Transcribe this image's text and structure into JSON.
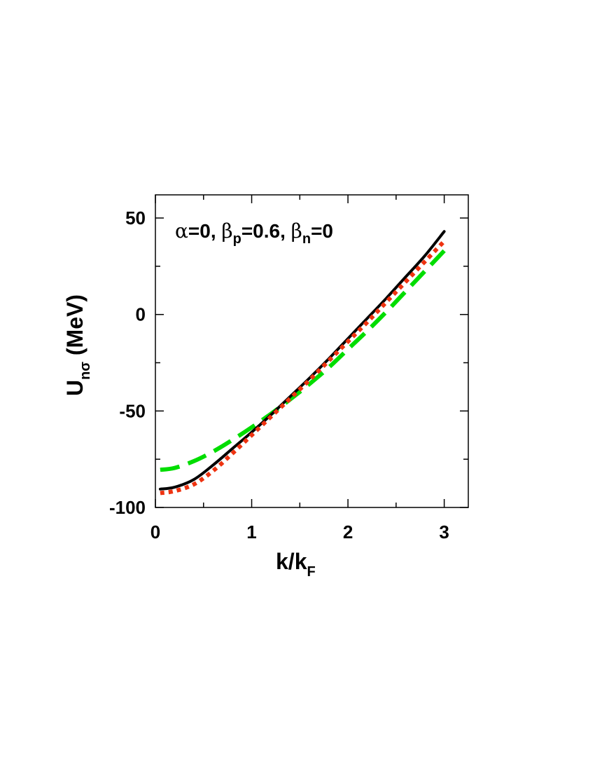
{
  "chart_data": {
    "type": "line",
    "title": "",
    "xlabel": {
      "main": "k/k",
      "sub": "F"
    },
    "ylabel": {
      "main": "U",
      "sub": "nσ",
      "unit": " (MeV)"
    },
    "annotation": {
      "alpha_sym": "α",
      "alpha_val": "=0, ",
      "bp_sym": "β",
      "bp_sub": "p",
      "bp_val": "=0.6, ",
      "bn_sym": "β",
      "bn_sub": "n",
      "bn_val": "=0"
    },
    "xlim": [
      0,
      3.25
    ],
    "ylim": [
      -100,
      62
    ],
    "x_major_ticks": [
      0,
      1,
      2,
      3
    ],
    "x_tick_labels": [
      "0",
      "1",
      "2",
      "3"
    ],
    "x_minor_ticks": [
      0.5,
      1.5,
      2.5
    ],
    "y_major_ticks": [
      -100,
      -50,
      0,
      50
    ],
    "y_tick_labels": [
      "-100",
      "-50",
      "0",
      "50"
    ],
    "y_minor_ticks": [
      -75,
      -25,
      25
    ],
    "grid": false,
    "legend": "none",
    "series": [
      {
        "color": "#00dd00",
        "style": "dashed",
        "x": [
          0.05,
          0.2,
          0.4,
          0.6,
          0.8,
          1.0,
          1.2,
          1.4,
          1.6,
          1.8,
          2.0,
          2.2,
          2.4,
          2.6,
          2.8,
          3.0
        ],
        "y": [
          -80.5,
          -79.5,
          -76,
          -71,
          -65,
          -58.5,
          -51.5,
          -44,
          -36,
          -27.5,
          -18,
          -8.5,
          1.5,
          12,
          22.5,
          33
        ]
      },
      {
        "color": "#000000",
        "style": "solid",
        "x": [
          0.05,
          0.2,
          0.4,
          0.6,
          0.8,
          1.0,
          1.2,
          1.4,
          1.6,
          1.8,
          2.0,
          2.2,
          2.4,
          2.6,
          2.8,
          3.0
        ],
        "y": [
          -90.5,
          -89.5,
          -85.5,
          -78,
          -69.5,
          -61,
          -52,
          -42.5,
          -33,
          -23,
          -12.5,
          -2,
          8.5,
          19.5,
          30.5,
          43
        ]
      },
      {
        "color": "#ee3311",
        "style": "dotted",
        "x": [
          0.05,
          0.2,
          0.4,
          0.6,
          0.8,
          1.0,
          1.2,
          1.4,
          1.6,
          1.8,
          2.0,
          2.2,
          2.4,
          2.6,
          2.8,
          3.0
        ],
        "y": [
          -92.5,
          -91.5,
          -88,
          -81,
          -72,
          -62.5,
          -53,
          -43.5,
          -34,
          -24,
          -14,
          -4,
          6.5,
          17,
          27.5,
          38
        ]
      }
    ]
  }
}
